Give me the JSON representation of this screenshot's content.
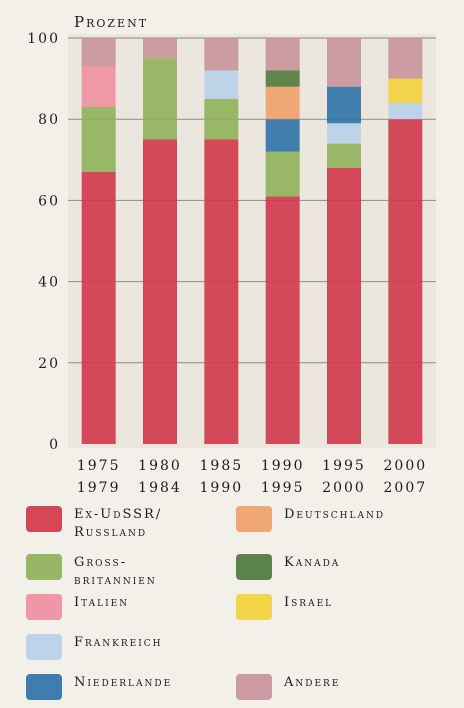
{
  "chart_data": {
    "type": "bar",
    "stacked": true,
    "ylabel": "Prozent",
    "ylim": [
      0,
      100
    ],
    "yticks": [
      0,
      20,
      40,
      60,
      80,
      100
    ],
    "grid": true,
    "legend_position": "bottom",
    "categories": [
      [
        "1975",
        "1979"
      ],
      [
        "1980",
        "1984"
      ],
      [
        "1985",
        "1990"
      ],
      [
        "1990",
        "1995"
      ],
      [
        "1995",
        "2000"
      ],
      [
        "2000",
        "2007"
      ]
    ],
    "series": [
      {
        "name": "Ex-UdSSR/\nRussland",
        "color": "#d2374a",
        "values": [
          67,
          75,
          75,
          61,
          68,
          80
        ]
      },
      {
        "name": "Gross-\nbritannien",
        "color": "#8fb15a",
        "values": [
          16,
          20,
          10,
          11,
          6,
          0
        ]
      },
      {
        "name": "Italien",
        "color": "#ef8fa0",
        "values": [
          10,
          0,
          0,
          0,
          0,
          0
        ]
      },
      {
        "name": "Frankreich",
        "color": "#b8d0e8",
        "values": [
          0,
          0,
          7,
          0,
          5,
          4
        ]
      },
      {
        "name": "Niederlande",
        "color": "#2f73a8",
        "values": [
          0,
          0,
          0,
          8,
          9,
          0
        ]
      },
      {
        "name": "Deutschland",
        "color": "#f0a06a",
        "values": [
          0,
          0,
          0,
          8,
          0,
          0
        ]
      },
      {
        "name": "Kanada",
        "color": "#4e7a3c",
        "values": [
          0,
          0,
          0,
          4,
          0,
          0
        ]
      },
      {
        "name": "Israel",
        "color": "#f3d23a",
        "values": [
          0,
          0,
          0,
          0,
          0,
          6
        ]
      },
      {
        "name": "Andere",
        "color": "#c9939c",
        "values": [
          7,
          5,
          8,
          8,
          12,
          10
        ]
      }
    ]
  }
}
